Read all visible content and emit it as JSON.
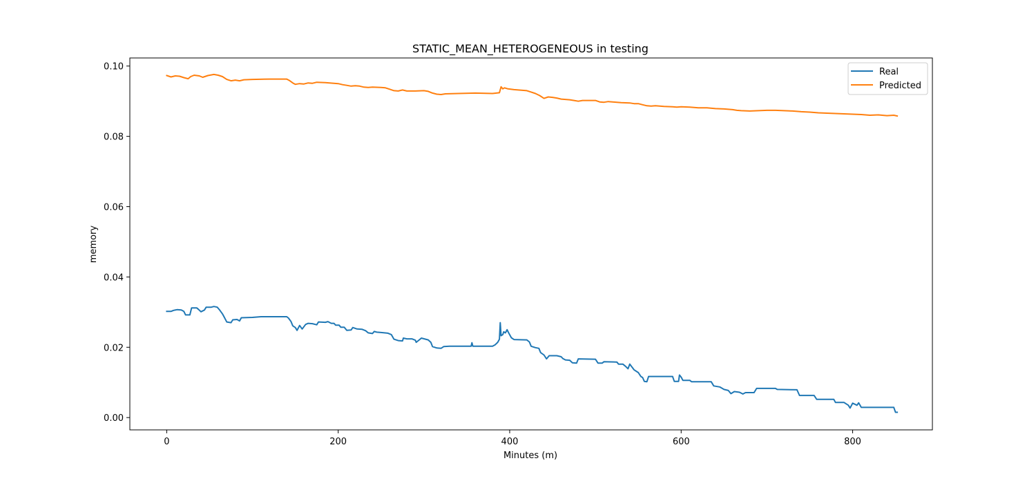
{
  "chart_data": {
    "type": "line",
    "title": "STATIC_MEAN_HETEROGENEOUS in testing",
    "xlabel": "Minutes (m)",
    "ylabel": "memory",
    "xlim": [
      -43,
      893
    ],
    "ylim": [
      -0.0035,
      0.1023
    ],
    "x_ticks": [
      0,
      200,
      400,
      600,
      800
    ],
    "x_tick_labels": [
      "0",
      "200",
      "400",
      "600",
      "800"
    ],
    "y_ticks": [
      0.0,
      0.02,
      0.04,
      0.06,
      0.08,
      0.1
    ],
    "y_tick_labels": [
      "0.00",
      "0.02",
      "0.04",
      "0.06",
      "0.08",
      "0.10"
    ],
    "grid": false,
    "legend_position": "top-right",
    "series": [
      {
        "name": "Real",
        "color": "#1f77b4",
        "points": [
          [
            0,
            0.0302
          ],
          [
            5,
            0.0302
          ],
          [
            8,
            0.0305
          ],
          [
            12,
            0.0307
          ],
          [
            17,
            0.0306
          ],
          [
            20,
            0.0302
          ],
          [
            22,
            0.0292
          ],
          [
            27,
            0.0292
          ],
          [
            29,
            0.0312
          ],
          [
            35,
            0.0312
          ],
          [
            37,
            0.0308
          ],
          [
            40,
            0.0301
          ],
          [
            44,
            0.0306
          ],
          [
            46,
            0.0314
          ],
          [
            52,
            0.0314
          ],
          [
            55,
            0.0316
          ],
          [
            59,
            0.0314
          ],
          [
            62,
            0.0305
          ],
          [
            65,
            0.0295
          ],
          [
            67,
            0.0286
          ],
          [
            70,
            0.0272
          ],
          [
            75,
            0.027
          ],
          [
            77,
            0.0278
          ],
          [
            82,
            0.0279
          ],
          [
            85,
            0.0275
          ],
          [
            87,
            0.0284
          ],
          [
            100,
            0.0285
          ],
          [
            110,
            0.0287
          ],
          [
            140,
            0.0287
          ],
          [
            142,
            0.0283
          ],
          [
            145,
            0.0273
          ],
          [
            147,
            0.0261
          ],
          [
            150,
            0.0256
          ],
          [
            152,
            0.0248
          ],
          [
            155,
            0.0262
          ],
          [
            158,
            0.0252
          ],
          [
            162,
            0.0265
          ],
          [
            165,
            0.0268
          ],
          [
            170,
            0.0267
          ],
          [
            175,
            0.0264
          ],
          [
            177,
            0.0272
          ],
          [
            185,
            0.0271
          ],
          [
            188,
            0.0273
          ],
          [
            192,
            0.0268
          ],
          [
            195,
            0.0268
          ],
          [
            197,
            0.0263
          ],
          [
            201,
            0.0263
          ],
          [
            203,
            0.0257
          ],
          [
            207,
            0.0257
          ],
          [
            210,
            0.0248
          ],
          [
            215,
            0.0249
          ],
          [
            217,
            0.0256
          ],
          [
            222,
            0.0252
          ],
          [
            228,
            0.0251
          ],
          [
            232,
            0.0247
          ],
          [
            235,
            0.0241
          ],
          [
            240,
            0.0239
          ],
          [
            242,
            0.0245
          ],
          [
            245,
            0.0243
          ],
          [
            250,
            0.0242
          ],
          [
            258,
            0.024
          ],
          [
            262,
            0.0236
          ],
          [
            265,
            0.0223
          ],
          [
            270,
            0.0219
          ],
          [
            275,
            0.0218
          ],
          [
            276,
            0.0226
          ],
          [
            280,
            0.0224
          ],
          [
            286,
            0.0224
          ],
          [
            290,
            0.022
          ],
          [
            291,
            0.0214
          ],
          [
            295,
            0.0222
          ],
          [
            297,
            0.0226
          ],
          [
            305,
            0.0221
          ],
          [
            308,
            0.0214
          ],
          [
            310,
            0.0202
          ],
          [
            315,
            0.0198
          ],
          [
            320,
            0.0197
          ],
          [
            323,
            0.0202
          ],
          [
            330,
            0.0203
          ],
          [
            350,
            0.0203
          ],
          [
            355,
            0.0203
          ],
          [
            356,
            0.0213
          ],
          [
            357,
            0.0203
          ],
          [
            380,
            0.0203
          ],
          [
            383,
            0.0207
          ],
          [
            386,
            0.0214
          ],
          [
            388,
            0.0223
          ],
          [
            389,
            0.027
          ],
          [
            390,
            0.0233
          ],
          [
            392,
            0.0236
          ],
          [
            393,
            0.0244
          ],
          [
            395,
            0.0241
          ],
          [
            397,
            0.025
          ],
          [
            399,
            0.024
          ],
          [
            402,
            0.0227
          ],
          [
            405,
            0.0222
          ],
          [
            420,
            0.0221
          ],
          [
            423,
            0.0215
          ],
          [
            425,
            0.0203
          ],
          [
            430,
            0.0199
          ],
          [
            434,
            0.0197
          ],
          [
            436,
            0.0185
          ],
          [
            440,
            0.0178
          ],
          [
            443,
            0.0167
          ],
          [
            446,
            0.0176
          ],
          [
            455,
            0.0176
          ],
          [
            460,
            0.0173
          ],
          [
            462,
            0.0168
          ],
          [
            465,
            0.0164
          ],
          [
            470,
            0.0163
          ],
          [
            473,
            0.0156
          ],
          [
            478,
            0.0155
          ],
          [
            480,
            0.0167
          ],
          [
            500,
            0.0166
          ],
          [
            503,
            0.0155
          ],
          [
            508,
            0.0155
          ],
          [
            510,
            0.0159
          ],
          [
            525,
            0.0158
          ],
          [
            527,
            0.0152
          ],
          [
            532,
            0.0152
          ],
          [
            535,
            0.0146
          ],
          [
            538,
            0.0139
          ],
          [
            540,
            0.0152
          ],
          [
            545,
            0.0136
          ],
          [
            550,
            0.0128
          ],
          [
            553,
            0.0117
          ],
          [
            555,
            0.0114
          ],
          [
            557,
            0.0103
          ],
          [
            560,
            0.0102
          ],
          [
            562,
            0.0117
          ],
          [
            590,
            0.0117
          ],
          [
            592,
            0.0103
          ],
          [
            597,
            0.0103
          ],
          [
            598,
            0.0121
          ],
          [
            600,
            0.0115
          ],
          [
            602,
            0.0106
          ],
          [
            610,
            0.0106
          ],
          [
            612,
            0.0102
          ],
          [
            635,
            0.0102
          ],
          [
            638,
            0.009
          ],
          [
            645,
            0.0087
          ],
          [
            650,
            0.008
          ],
          [
            655,
            0.0077
          ],
          [
            658,
            0.0068
          ],
          [
            662,
            0.0074
          ],
          [
            668,
            0.0072
          ],
          [
            672,
            0.0067
          ],
          [
            675,
            0.0071
          ],
          [
            685,
            0.0071
          ],
          [
            688,
            0.0083
          ],
          [
            710,
            0.0083
          ],
          [
            712,
            0.008
          ],
          [
            735,
            0.0079
          ],
          [
            738,
            0.0063
          ],
          [
            755,
            0.0063
          ],
          [
            758,
            0.0052
          ],
          [
            778,
            0.0052
          ],
          [
            780,
            0.0043
          ],
          [
            790,
            0.0043
          ],
          [
            795,
            0.0035
          ],
          [
            797,
            0.0027
          ],
          [
            800,
            0.0041
          ],
          [
            805,
            0.0035
          ],
          [
            807,
            0.0042
          ],
          [
            810,
            0.0029
          ],
          [
            848,
            0.0029
          ],
          [
            850,
            0.0015
          ],
          [
            852,
            0.0015
          ]
        ]
      },
      {
        "name": "Predicted",
        "color": "#ff7f0e",
        "points": [
          [
            0,
            0.0973
          ],
          [
            5,
            0.0969
          ],
          [
            10,
            0.0972
          ],
          [
            15,
            0.0971
          ],
          [
            20,
            0.0967
          ],
          [
            25,
            0.0964
          ],
          [
            28,
            0.097
          ],
          [
            32,
            0.0974
          ],
          [
            38,
            0.0972
          ],
          [
            42,
            0.0968
          ],
          [
            48,
            0.0973
          ],
          [
            55,
            0.0976
          ],
          [
            60,
            0.0974
          ],
          [
            65,
            0.097
          ],
          [
            70,
            0.0962
          ],
          [
            75,
            0.0958
          ],
          [
            80,
            0.096
          ],
          [
            85,
            0.0958
          ],
          [
            90,
            0.0961
          ],
          [
            100,
            0.0962
          ],
          [
            120,
            0.0963
          ],
          [
            140,
            0.0963
          ],
          [
            143,
            0.0959
          ],
          [
            147,
            0.0952
          ],
          [
            150,
            0.0948
          ],
          [
            155,
            0.095
          ],
          [
            160,
            0.0949
          ],
          [
            165,
            0.0952
          ],
          [
            170,
            0.0951
          ],
          [
            175,
            0.0954
          ],
          [
            185,
            0.0953
          ],
          [
            195,
            0.0951
          ],
          [
            200,
            0.095
          ],
          [
            205,
            0.0947
          ],
          [
            210,
            0.0945
          ],
          [
            215,
            0.0943
          ],
          [
            220,
            0.0944
          ],
          [
            225,
            0.0943
          ],
          [
            230,
            0.094
          ],
          [
            235,
            0.0939
          ],
          [
            240,
            0.094
          ],
          [
            250,
            0.0939
          ],
          [
            255,
            0.0938
          ],
          [
            260,
            0.0934
          ],
          [
            265,
            0.093
          ],
          [
            270,
            0.0929
          ],
          [
            275,
            0.0932
          ],
          [
            280,
            0.0929
          ],
          [
            290,
            0.0929
          ],
          [
            300,
            0.093
          ],
          [
            305,
            0.0928
          ],
          [
            310,
            0.0923
          ],
          [
            315,
            0.092
          ],
          [
            320,
            0.0919
          ],
          [
            325,
            0.0921
          ],
          [
            340,
            0.0922
          ],
          [
            360,
            0.0923
          ],
          [
            380,
            0.0922
          ],
          [
            388,
            0.0924
          ],
          [
            390,
            0.0941
          ],
          [
            392,
            0.0935
          ],
          [
            394,
            0.0938
          ],
          [
            398,
            0.0935
          ],
          [
            405,
            0.0933
          ],
          [
            410,
            0.0932
          ],
          [
            420,
            0.093
          ],
          [
            425,
            0.0926
          ],
          [
            430,
            0.0922
          ],
          [
            435,
            0.0916
          ],
          [
            440,
            0.0908
          ],
          [
            445,
            0.0912
          ],
          [
            450,
            0.0911
          ],
          [
            455,
            0.0909
          ],
          [
            460,
            0.0906
          ],
          [
            465,
            0.0905
          ],
          [
            470,
            0.0904
          ],
          [
            475,
            0.0902
          ],
          [
            480,
            0.09
          ],
          [
            485,
            0.0902
          ],
          [
            500,
            0.0902
          ],
          [
            505,
            0.0898
          ],
          [
            510,
            0.0897
          ],
          [
            515,
            0.0899
          ],
          [
            525,
            0.0897
          ],
          [
            530,
            0.0896
          ],
          [
            540,
            0.0895
          ],
          [
            545,
            0.0893
          ],
          [
            550,
            0.0893
          ],
          [
            555,
            0.089
          ],
          [
            560,
            0.0887
          ],
          [
            565,
            0.0886
          ],
          [
            570,
            0.0887
          ],
          [
            580,
            0.0885
          ],
          [
            590,
            0.0884
          ],
          [
            595,
            0.0883
          ],
          [
            600,
            0.0884
          ],
          [
            610,
            0.0883
          ],
          [
            620,
            0.0881
          ],
          [
            630,
            0.0881
          ],
          [
            640,
            0.0879
          ],
          [
            650,
            0.0878
          ],
          [
            660,
            0.0876
          ],
          [
            665,
            0.0874
          ],
          [
            670,
            0.0873
          ],
          [
            680,
            0.0872
          ],
          [
            690,
            0.0873
          ],
          [
            700,
            0.0874
          ],
          [
            710,
            0.0874
          ],
          [
            720,
            0.0873
          ],
          [
            730,
            0.0872
          ],
          [
            740,
            0.087
          ],
          [
            750,
            0.0869
          ],
          [
            760,
            0.0867
          ],
          [
            770,
            0.0866
          ],
          [
            780,
            0.0865
          ],
          [
            790,
            0.0864
          ],
          [
            800,
            0.0863
          ],
          [
            810,
            0.0862
          ],
          [
            820,
            0.086
          ],
          [
            830,
            0.0861
          ],
          [
            840,
            0.0859
          ],
          [
            848,
            0.086
          ],
          [
            852,
            0.0858
          ]
        ]
      }
    ]
  }
}
